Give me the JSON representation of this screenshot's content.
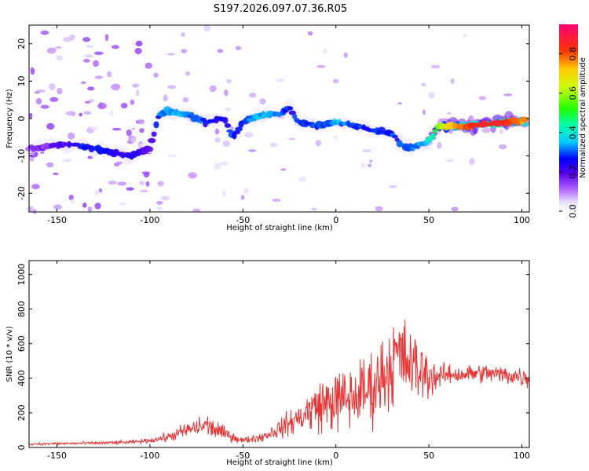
{
  "title": "S197.2026.097.07.36.R05",
  "chart_data": [
    {
      "type": "heatmap",
      "name": "spectrogram",
      "xlabel": "Height of straight line (km)",
      "ylabel": "Frequency (Hz)",
      "xlim": [
        -165,
        104
      ],
      "ylim": [
        -25,
        25
      ],
      "xticks": [
        -150,
        -100,
        -50,
        0,
        50,
        100
      ],
      "yticks": [
        -20,
        -10,
        0,
        10,
        20
      ],
      "colorbar": {
        "label": "Normalized spectral amplitude",
        "range": [
          0,
          0.95
        ],
        "ticks": [
          0.0,
          0.2,
          0.4,
          0.6,
          0.8
        ]
      },
      "ridge": {
        "x": [
          -160,
          -150,
          -140,
          -130,
          -120,
          -110,
          -100,
          -95,
          -90,
          -80,
          -70,
          -60,
          -55,
          -50,
          -40,
          -30,
          -25,
          -20,
          -10,
          0,
          10,
          20,
          30,
          35,
          40,
          45,
          50,
          55,
          60,
          70,
          80,
          90,
          100
        ],
        "y": [
          -8,
          -7,
          -7,
          -8,
          -9,
          -10,
          -8,
          1,
          2,
          1,
          -1,
          0,
          -5,
          -1,
          1,
          1,
          3,
          -1,
          -2,
          -1,
          -2,
          -3,
          -4,
          -7,
          -8,
          -7,
          -6,
          -2,
          -2,
          -2,
          -1.5,
          -1,
          -0.5
        ],
        "amplitude": [
          0.15,
          0.2,
          0.25,
          0.3,
          0.25,
          0.25,
          0.2,
          0.3,
          0.35,
          0.35,
          0.3,
          0.25,
          0.3,
          0.3,
          0.35,
          0.35,
          0.3,
          0.3,
          0.3,
          0.35,
          0.3,
          0.3,
          0.3,
          0.3,
          0.3,
          0.35,
          0.4,
          0.6,
          0.75,
          0.85,
          0.9,
          0.9,
          0.8
        ]
      }
    },
    {
      "type": "line",
      "name": "snr",
      "xlabel": "Height of straight line (km)",
      "ylabel": "SNR (10 * v/v)",
      "xlim": [
        -165,
        104
      ],
      "ylim": [
        0,
        1080
      ],
      "xticks": [
        -150,
        -100,
        -50,
        0,
        50,
        100
      ],
      "yticks": [
        0,
        200,
        400,
        600,
        800,
        1000
      ],
      "color": "#ee3333",
      "x": [
        -165,
        -150,
        -130,
        -110,
        -100,
        -90,
        -80,
        -70,
        -60,
        -50,
        -40,
        -30,
        -20,
        -10,
        0,
        10,
        20,
        25,
        30,
        33,
        35,
        40,
        45,
        50,
        55,
        60,
        70,
        80,
        90,
        100,
        104
      ],
      "y": [
        20,
        22,
        25,
        30,
        40,
        60,
        100,
        130,
        80,
        40,
        60,
        110,
        170,
        240,
        270,
        290,
        350,
        420,
        480,
        540,
        520,
        480,
        440,
        420,
        410,
        420,
        425,
        430,
        420,
        410,
        400
      ],
      "spread": [
        10,
        10,
        15,
        15,
        20,
        40,
        70,
        100,
        60,
        25,
        40,
        80,
        130,
        220,
        260,
        280,
        320,
        340,
        360,
        380,
        360,
        320,
        260,
        200,
        120,
        80,
        80,
        80,
        80,
        90,
        90
      ]
    }
  ]
}
